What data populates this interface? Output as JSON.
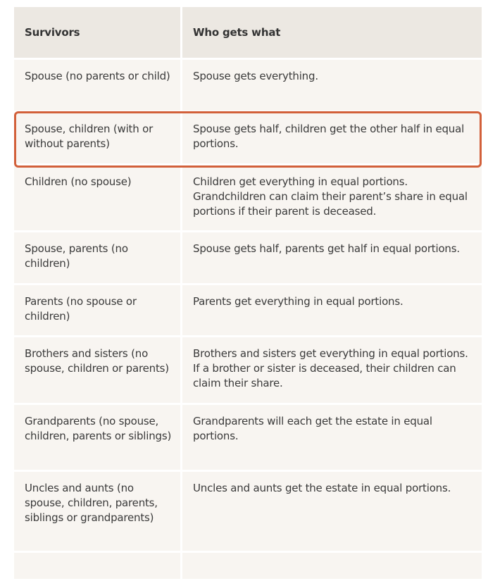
{
  "table": {
    "headers": [
      "Survivors",
      "Who gets what"
    ],
    "rows": [
      [
        "Spouse (no parents or child)",
        "Spouse gets everything."
      ],
      [
        "Spouse, children (with or without parents)",
        "Spouse gets half, children get the other half in equal portions."
      ],
      [
        "Children (no spouse)",
        "Children get everything in equal portions. Grandchildren can claim their parent’s share in equal portions if their parent is deceased."
      ],
      [
        "Spouse, parents (no children)",
        "Spouse gets half, parents get half in equal portions."
      ],
      [
        "Parents (no spouse or children)",
        "Parents get everything in equal portions."
      ],
      [
        "Brothers and sisters (no spouse, children or parents)",
        "Brothers and sisters get everything in equal portions. If a brother or sister is deceased, their children can claim their share."
      ],
      [
        "Grandparents (no spouse, children, parents or siblings)",
        "Grandparents will each get the estate in equal portions."
      ],
      [
        "Uncles and aunts (no spouse, children, parents, siblings or grandparents)",
        "Uncles and aunts get the estate in equal portions."
      ],
      [
        "",
        ""
      ]
    ],
    "highlighted_row": 1,
    "highlight_color": "#d2603a"
  }
}
